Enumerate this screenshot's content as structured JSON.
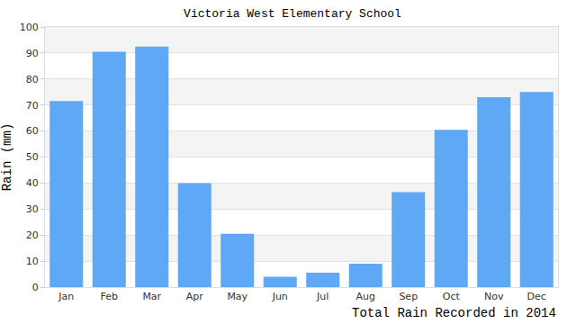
{
  "chart_data": {
    "type": "bar",
    "title": "Victoria West Elementary School",
    "xlabel": "Total Rain Recorded in 2014",
    "ylabel": "Rain (mm)",
    "categories": [
      "Jan",
      "Feb",
      "Mar",
      "Apr",
      "May",
      "Jun",
      "Jul",
      "Aug",
      "Sep",
      "Oct",
      "Nov",
      "Dec"
    ],
    "values": [
      71.5,
      90.5,
      92.5,
      40,
      20.5,
      4,
      5.5,
      9,
      36.5,
      60.5,
      73,
      75
    ],
    "color": "#5fa8f5",
    "ylim": [
      0,
      100
    ],
    "yticks": [
      0,
      10,
      20,
      30,
      40,
      50,
      60,
      70,
      80,
      90,
      100
    ],
    "grid": true
  }
}
